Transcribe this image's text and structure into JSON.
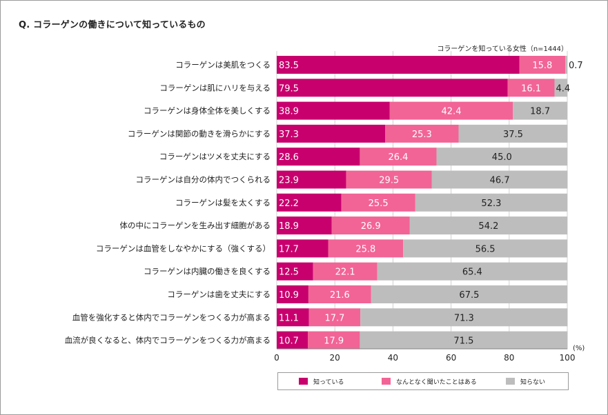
{
  "title": "Q. コラーゲンの働きについて知っているもの",
  "note": "コラーゲンを知っている女性（n=1444）",
  "unit": "(%)",
  "colors": {
    "know": "#c8006e",
    "vaguely": "#f26496",
    "unknown": "#bdbdbd",
    "grid": "#d0d0d0"
  },
  "chart_data": {
    "type": "bar",
    "orientation": "horizontal",
    "stacked": true,
    "categories": [
      "コラーゲンは美肌をつくる",
      "コラーゲンは肌にハリを与える",
      "コラーゲンは身体全体を美しくする",
      "コラーゲンは関節の動きを滑らかにする",
      "コラーゲンはツメを丈夫にする",
      "コラーゲンは自分の体内でつくられる",
      "コラーゲンは髪を太くする",
      "体の中にコラーゲンを生み出す細胞がある",
      "コラーゲンは血管をしなやかにする（強くする）",
      "コラーゲンは内臓の働きを良くする",
      "コラーゲンは歯を丈夫にする",
      "血管を強化すると体内でコラーゲンをつくる力が高まる",
      "血流が良くなると、体内でコラーゲンをつくる力が高まる"
    ],
    "series": [
      {
        "name": "知っている",
        "values": [
          83.5,
          79.5,
          38.9,
          37.3,
          28.6,
          23.9,
          22.2,
          18.9,
          17.7,
          12.5,
          10.9,
          11.1,
          10.7
        ]
      },
      {
        "name": "なんとなく聞いたことはある",
        "values": [
          15.8,
          16.1,
          42.4,
          25.3,
          26.4,
          29.5,
          25.5,
          26.9,
          25.8,
          22.1,
          21.6,
          17.7,
          17.9
        ]
      },
      {
        "name": "知らない",
        "values": [
          0.7,
          4.4,
          18.7,
          37.5,
          45.0,
          46.7,
          52.3,
          54.2,
          56.5,
          65.4,
          67.5,
          71.3,
          71.5
        ]
      }
    ],
    "xlim": [
      0,
      100
    ],
    "xticks": [
      0,
      20,
      40,
      60,
      80,
      100
    ],
    "grid": true,
    "legend_position": "bottom"
  }
}
